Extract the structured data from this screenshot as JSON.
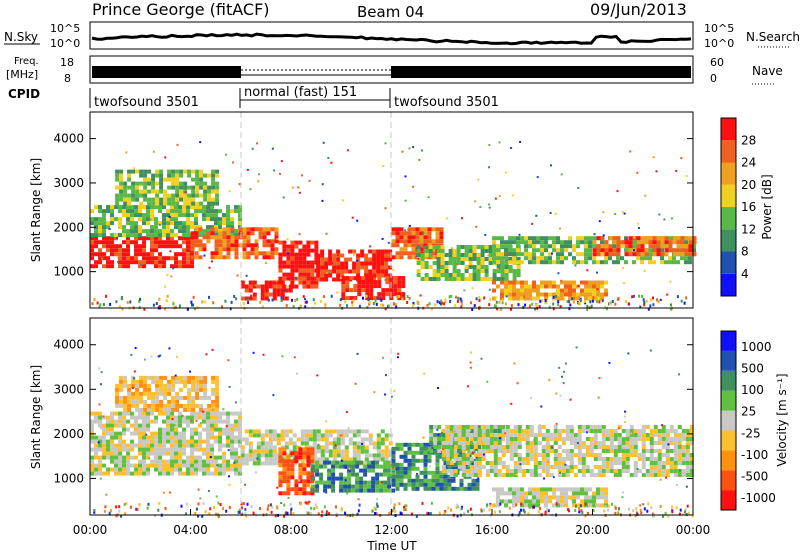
{
  "header": {
    "title": "Prince George (fitACF)",
    "beam": "Beam 04",
    "date": "09/Jun/2013"
  },
  "noise_panel": {
    "left_label": "N.Sky",
    "right_label": "N.Search",
    "left_tick_top": "10^5",
    "left_tick_bottom": "10^0",
    "right_tick_top": "10^5",
    "right_tick_bottom": "10^0"
  },
  "freq_panel": {
    "left_label": "Freq.",
    "left_unit": "[MHz]",
    "right_label": "Nave",
    "left_tick_top": "18",
    "left_tick_bottom": "8",
    "right_tick_top": "60",
    "right_tick_bottom": "0"
  },
  "cpid": {
    "label": "CPID",
    "segments": [
      {
        "name": "twofsound 3501",
        "start_hour": 0,
        "end_hour": 6
      },
      {
        "name": "normal (fast) 151",
        "start_hour": 6,
        "end_hour": 12
      },
      {
        "name": "twofsound 3501",
        "start_hour": 12,
        "end_hour": 24
      }
    ]
  },
  "colors": {
    "gray": "#c8c8c4",
    "power": [
      "#1010ff",
      "#2050b0",
      "#3f8f5f",
      "#58b848",
      "#f0d020",
      "#f0a020",
      "#f06020",
      "#ff1010"
    ],
    "velocity": [
      "#ff1010",
      "#ff5010",
      "#ff9010",
      "#ffc030",
      "#c8c8c4",
      "#60c040",
      "#3f8f5f",
      "#2050b0",
      "#1010ff"
    ]
  },
  "chart_data": [
    {
      "type": "heatmap",
      "name": "power",
      "xlabel": "",
      "ylabel": "Slant Range [km]",
      "xlim": [
        0,
        24
      ],
      "ylim": [
        180,
        4600
      ],
      "yticks": [
        "1000",
        "2000",
        "3000",
        "4000"
      ],
      "colorbar": {
        "label": "Power [dB]",
        "range": [
          0,
          32
        ],
        "ticks": [
          "4",
          "8",
          "12",
          "16",
          "20",
          "24",
          "28"
        ]
      },
      "bands": [
        {
          "start_hour": 0,
          "end_hour": 4,
          "range_start_km": 1100,
          "range_end_km": 1800,
          "level": 7
        },
        {
          "start_hour": 0,
          "end_hour": 6,
          "range_start_km": 1800,
          "range_end_km": 2500,
          "level": 3
        },
        {
          "start_hour": 1,
          "end_hour": 5,
          "range_start_km": 2500,
          "range_end_km": 3300,
          "level": 3
        },
        {
          "start_hour": 4,
          "end_hour": 7.5,
          "range_start_km": 1300,
          "range_end_km": 2000,
          "level": 6
        },
        {
          "start_hour": 6,
          "end_hour": 8,
          "range_start_km": 400,
          "range_end_km": 800,
          "level": 7
        },
        {
          "start_hour": 7.5,
          "end_hour": 9,
          "range_start_km": 700,
          "range_end_km": 1700,
          "level": 7
        },
        {
          "start_hour": 9,
          "end_hour": 12,
          "range_start_km": 800,
          "range_end_km": 1500,
          "level": 7
        },
        {
          "start_hour": 10,
          "end_hour": 12.5,
          "range_start_km": 400,
          "range_end_km": 900,
          "level": 7
        },
        {
          "start_hour": 12,
          "end_hour": 14,
          "range_start_km": 1300,
          "range_end_km": 2000,
          "level": 6
        },
        {
          "start_hour": 13,
          "end_hour": 17,
          "range_start_km": 800,
          "range_end_km": 1600,
          "level": 3
        },
        {
          "start_hour": 16,
          "end_hour": 24,
          "range_start_km": 1200,
          "range_end_km": 1800,
          "level": 3
        },
        {
          "start_hour": 16,
          "end_hour": 20.5,
          "range_start_km": 400,
          "range_end_km": 800,
          "level": 5
        },
        {
          "start_hour": 20,
          "end_hour": 24,
          "range_start_km": 1400,
          "range_end_km": 1800,
          "level": 6
        }
      ]
    },
    {
      "type": "heatmap",
      "name": "velocity",
      "xlabel": "Time UT",
      "ylabel": "Slant Range [km]",
      "xlim": [
        0,
        24
      ],
      "ylim": [
        180,
        4600
      ],
      "xticks": [
        "00:00",
        "04:00",
        "08:00",
        "12:00",
        "16:00",
        "20:00",
        "00:00"
      ],
      "yticks": [
        "1000",
        "2000",
        "3000",
        "4000"
      ],
      "colorbar": {
        "label": "Velocity [m s⁻¹]",
        "ticks": [
          "1000",
          "500",
          "100",
          "25",
          "-25",
          "-100",
          "-500",
          "-1000"
        ]
      },
      "bands": [
        {
          "start_hour": 0,
          "end_hour": 6,
          "range_start_km": 1100,
          "range_end_km": 2500,
          "level": 4
        },
        {
          "start_hour": 1,
          "end_hour": 5,
          "range_start_km": 2500,
          "range_end_km": 3300,
          "level": 3
        },
        {
          "start_hour": 6,
          "end_hour": 12,
          "range_start_km": 1300,
          "range_end_km": 2100,
          "level": 4
        },
        {
          "start_hour": 7.5,
          "end_hour": 8.8,
          "range_start_km": 700,
          "range_end_km": 1700,
          "level": 1
        },
        {
          "start_hour": 8.8,
          "end_hour": 12,
          "range_start_km": 700,
          "range_end_km": 1400,
          "level": 6
        },
        {
          "start_hour": 12,
          "end_hour": 15.5,
          "range_start_km": 800,
          "range_end_km": 1800,
          "level": 6
        },
        {
          "start_hour": 13.5,
          "end_hour": 16.5,
          "range_start_km": 1600,
          "range_end_km": 2200,
          "level": 5
        },
        {
          "start_hour": 14,
          "end_hour": 24,
          "range_start_km": 1100,
          "range_end_km": 2200,
          "level": 4
        },
        {
          "start_hour": 16,
          "end_hour": 20.5,
          "range_start_km": 400,
          "range_end_km": 800,
          "level": 4
        }
      ]
    }
  ]
}
